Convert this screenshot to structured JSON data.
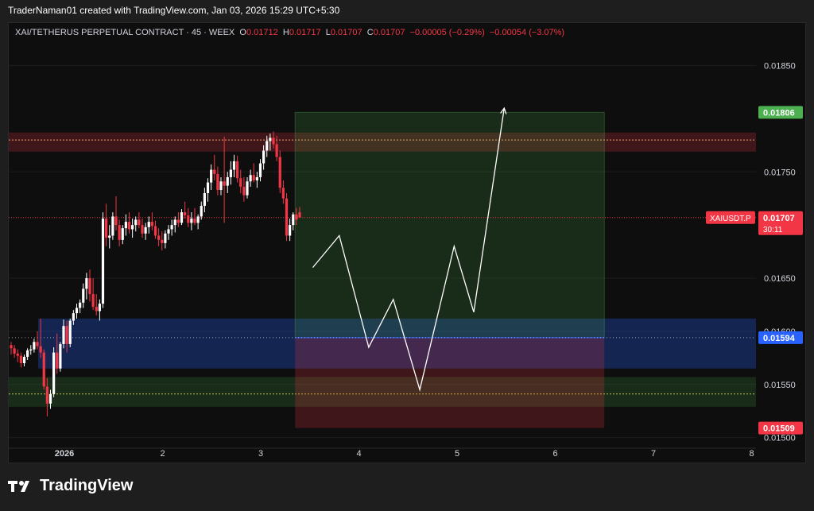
{
  "header": {
    "credit": "TraderNaman01 created with TradingView.com, Jan 03, 2026 15:29 UTC+5:30"
  },
  "legend": {
    "symbol": "XAI/TETHERUS PERPETUAL CONTRACT · 45 · WEEX",
    "o_label": "O",
    "o": "0.01712",
    "h_label": "H",
    "h": "0.01717",
    "l_label": "L",
    "l": "0.01707",
    "c_label": "C",
    "c": "0.01707",
    "change": "−0.00005 (−0.29%)",
    "change2": "−0.00054 (−3.07%)"
  },
  "footer": {
    "brand": "TradingView"
  },
  "colors": {
    "up": "#ffffff",
    "down": "#f23645",
    "target": "#4caf50",
    "stop": "#f23645",
    "entry": "#2962ff",
    "grid": "#1c1c1c"
  },
  "chart_data": {
    "type": "candlestick",
    "ylim": [
      0.0149,
      0.0189
    ],
    "y_ticks": [
      "0.01850",
      "0.01750",
      "0.01650",
      "0.01600",
      "0.01550",
      "0.01500"
    ],
    "x_ticks": [
      "2026",
      "2",
      "3",
      "4",
      "5",
      "6",
      "7",
      "8"
    ],
    "price_labels": {
      "target": "0.01806",
      "current_symbol": "XAIUSDT.P",
      "current": "0.01707",
      "countdown": "30:11",
      "entry": "0.01594",
      "stop": "0.01509"
    },
    "levels": {
      "target": 0.01806,
      "current": 0.01707,
      "entry": 0.01594,
      "stop": 0.01509,
      "resistance_zone": [
        0.01769,
        0.01787
      ],
      "demand_zone": [
        0.01565,
        0.01612
      ],
      "support_zone": [
        0.01529,
        0.01557
      ],
      "support_line": 0.01541,
      "resistance_line": 0.0178
    },
    "position": {
      "start_day": 3.35,
      "end_day": 6.5
    },
    "projection_path": [
      [
        3.53,
        0.0166
      ],
      [
        3.8,
        0.0169
      ],
      [
        4.1,
        0.01585
      ],
      [
        4.35,
        0.0163
      ],
      [
        4.62,
        0.01545
      ],
      [
        4.97,
        0.0168
      ],
      [
        5.17,
        0.01618
      ],
      [
        5.48,
        0.0181
      ]
    ],
    "candles_ohlc": [
      [
        0.01587,
        0.0159,
        0.01578,
        0.01584
      ],
      [
        0.01584,
        0.01587,
        0.01575,
        0.01579
      ],
      [
        0.01579,
        0.01583,
        0.01571,
        0.01577
      ],
      [
        0.01577,
        0.0158,
        0.01566,
        0.0157
      ],
      [
        0.0157,
        0.01578,
        0.01567,
        0.01576
      ],
      [
        0.01576,
        0.01584,
        0.01573,
        0.01582
      ],
      [
        0.01582,
        0.01587,
        0.01578,
        0.01583
      ],
      [
        0.01583,
        0.01593,
        0.0158,
        0.0159
      ],
      [
        0.0159,
        0.016,
        0.01583,
        0.01586
      ],
      [
        0.01586,
        0.01612,
        0.01575,
        0.0158
      ],
      [
        0.0158,
        0.01583,
        0.01545,
        0.01548
      ],
      [
        0.01548,
        0.01556,
        0.0152,
        0.01532
      ],
      [
        0.01532,
        0.01545,
        0.01527,
        0.01541
      ],
      [
        0.01541,
        0.01585,
        0.01538,
        0.0158
      ],
      [
        0.0158,
        0.01598,
        0.0156,
        0.01565
      ],
      [
        0.01565,
        0.0159,
        0.01562,
        0.01588
      ],
      [
        0.01588,
        0.01611,
        0.01584,
        0.01605
      ],
      [
        0.01605,
        0.0161,
        0.0158,
        0.01588
      ],
      [
        0.01588,
        0.01612,
        0.01585,
        0.0161
      ],
      [
        0.0161,
        0.0162,
        0.01606,
        0.01617
      ],
      [
        0.01617,
        0.01626,
        0.01612,
        0.01622
      ],
      [
        0.01622,
        0.0163,
        0.01617,
        0.01627
      ],
      [
        0.01627,
        0.01645,
        0.01622,
        0.0164
      ],
      [
        0.0164,
        0.01655,
        0.0163,
        0.0165
      ],
      [
        0.0165,
        0.01658,
        0.01628,
        0.01635
      ],
      [
        0.01635,
        0.0165,
        0.0162,
        0.01623
      ],
      [
        0.01623,
        0.01635,
        0.01615,
        0.01619
      ],
      [
        0.01619,
        0.0163,
        0.0161,
        0.01626
      ],
      [
        0.01626,
        0.01712,
        0.01622,
        0.01706
      ],
      [
        0.01706,
        0.0172,
        0.0168,
        0.01688
      ],
      [
        0.01688,
        0.017,
        0.01678,
        0.0169
      ],
      [
        0.0169,
        0.01712,
        0.01686,
        0.01708
      ],
      [
        0.01708,
        0.01727,
        0.01695,
        0.017
      ],
      [
        0.017,
        0.01705,
        0.0168,
        0.01686
      ],
      [
        0.01686,
        0.017,
        0.01682,
        0.01697
      ],
      [
        0.01697,
        0.0171,
        0.0169,
        0.01703
      ],
      [
        0.01703,
        0.01712,
        0.01692,
        0.01696
      ],
      [
        0.01696,
        0.01706,
        0.01688,
        0.017
      ],
      [
        0.017,
        0.01708,
        0.01694,
        0.01705
      ],
      [
        0.01705,
        0.01712,
        0.01697,
        0.017
      ],
      [
        0.017,
        0.01706,
        0.01688,
        0.01692
      ],
      [
        0.01692,
        0.01702,
        0.01686,
        0.01698
      ],
      [
        0.01698,
        0.01708,
        0.01692,
        0.01703
      ],
      [
        0.01703,
        0.01712,
        0.01695,
        0.01699
      ],
      [
        0.01699,
        0.01704,
        0.01687,
        0.0169
      ],
      [
        0.0169,
        0.01697,
        0.0168,
        0.01686
      ],
      [
        0.01686,
        0.01694,
        0.01676,
        0.01683
      ],
      [
        0.01683,
        0.01695,
        0.01678,
        0.01692
      ],
      [
        0.01692,
        0.017,
        0.01686,
        0.01696
      ],
      [
        0.01696,
        0.01705,
        0.0169,
        0.017
      ],
      [
        0.017,
        0.01708,
        0.01693,
        0.01705
      ],
      [
        0.01705,
        0.01712,
        0.01698,
        0.01702
      ],
      [
        0.01702,
        0.01715,
        0.017,
        0.01712
      ],
      [
        0.01712,
        0.01722,
        0.01706,
        0.01709
      ],
      [
        0.01709,
        0.01716,
        0.01698,
        0.01702
      ],
      [
        0.01702,
        0.01712,
        0.01695,
        0.01706
      ],
      [
        0.01706,
        0.01716,
        0.017,
        0.01702
      ],
      [
        0.01702,
        0.0171,
        0.01696,
        0.01708
      ],
      [
        0.01708,
        0.01722,
        0.01705,
        0.01718
      ],
      [
        0.01718,
        0.01735,
        0.01712,
        0.0173
      ],
      [
        0.0173,
        0.01744,
        0.01722,
        0.0174
      ],
      [
        0.0174,
        0.01757,
        0.01733,
        0.01752
      ],
      [
        0.01752,
        0.01766,
        0.01742,
        0.01748
      ],
      [
        0.01748,
        0.01755,
        0.01728,
        0.01733
      ],
      [
        0.01733,
        0.01745,
        0.01728,
        0.01741
      ],
      [
        0.01741,
        0.01783,
        0.01702,
        0.01737
      ],
      [
        0.01737,
        0.0175,
        0.0173,
        0.01745
      ],
      [
        0.01745,
        0.0176,
        0.01738,
        0.01752
      ],
      [
        0.01752,
        0.01766,
        0.01745,
        0.0176
      ],
      [
        0.0176,
        0.01765,
        0.0174,
        0.01744
      ],
      [
        0.01744,
        0.01752,
        0.0173,
        0.01736
      ],
      [
        0.01736,
        0.01745,
        0.01722,
        0.01728
      ],
      [
        0.01728,
        0.01745,
        0.01725,
        0.01741
      ],
      [
        0.01741,
        0.01752,
        0.01736,
        0.01747
      ],
      [
        0.01747,
        0.01758,
        0.0174,
        0.01742
      ],
      [
        0.01742,
        0.0175,
        0.01735,
        0.01745
      ],
      [
        0.01745,
        0.01762,
        0.01741,
        0.01758
      ],
      [
        0.01758,
        0.01775,
        0.01752,
        0.0177
      ],
      [
        0.0177,
        0.01784,
        0.01764,
        0.01779
      ],
      [
        0.01779,
        0.01786,
        0.0177,
        0.01782
      ],
      [
        0.01782,
        0.01788,
        0.01772,
        0.01776
      ],
      [
        0.01776,
        0.01784,
        0.0176,
        0.01764
      ],
      [
        0.01764,
        0.0177,
        0.0173,
        0.01735
      ],
      [
        0.01735,
        0.01742,
        0.0172,
        0.01725
      ],
      [
        0.01725,
        0.0173,
        0.01685,
        0.0169
      ],
      [
        0.0169,
        0.01706,
        0.01685,
        0.017
      ],
      [
        0.017,
        0.01712,
        0.01695,
        0.0171
      ],
      [
        0.0171,
        0.01716,
        0.017,
        0.01705
      ],
      [
        0.01712,
        0.01717,
        0.01707,
        0.01707
      ]
    ]
  }
}
